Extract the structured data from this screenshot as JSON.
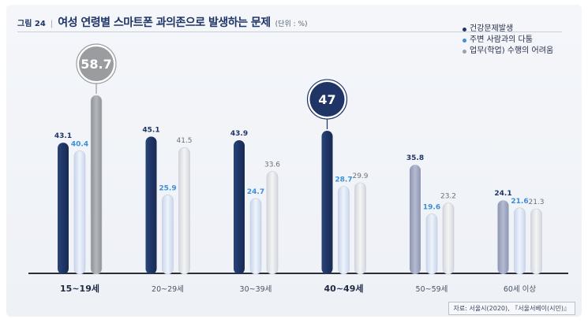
{
  "header": {
    "figure_label": "그림 24",
    "separator": "|",
    "title": "여성 연령별 스마트폰 과의존으로 발생하는 문제",
    "unit": "(단위 : %)"
  },
  "source": "자료: 서울시(2020), 『서울서베이(시민)』",
  "colors": {
    "series1": "#1f3566",
    "series2": "#3b8fd9",
    "series3": "#9a9fa8",
    "bar1_base": "#1f3566",
    "bar2_base": "#dfe7f5",
    "bar3_base": "#e4e6ea",
    "bubble_gray": "#9a9c9f",
    "bubble_navy": "#1f3566",
    "axis": "#2a2f38"
  },
  "chart_data": {
    "type": "bar",
    "title": "여성 연령별 스마트폰 과의존으로 발생하는 문제",
    "xlabel": "",
    "ylabel": "",
    "ylim": [
      0,
      60
    ],
    "grid": false,
    "legend_position": "top-right",
    "categories": [
      "15~19세",
      "20~29세",
      "30~39세",
      "40~49세",
      "50~59세",
      "60세 이상"
    ],
    "highlight_categories": [
      "15~19세",
      "40~49세"
    ],
    "series": [
      {
        "name": "건강문제발생",
        "values": [
          43.1,
          45.1,
          43.9,
          47,
          35.8,
          24.1
        ]
      },
      {
        "name": "주변 사람과의 다툼",
        "values": [
          40.4,
          25.9,
          24.7,
          28.7,
          19.6,
          21.6
        ]
      },
      {
        "name": "업무(학업) 수행의 어려움",
        "values": [
          58.7,
          41.5,
          33.6,
          29.9,
          23.2,
          21.3
        ]
      }
    ],
    "callouts": [
      {
        "category": "15~19세",
        "series": "업무(학업) 수행의 어려움",
        "label": "58.7",
        "style": "gray"
      },
      {
        "category": "40~49세",
        "series": "건강문제발생",
        "label": "47",
        "style": "navy"
      }
    ]
  }
}
